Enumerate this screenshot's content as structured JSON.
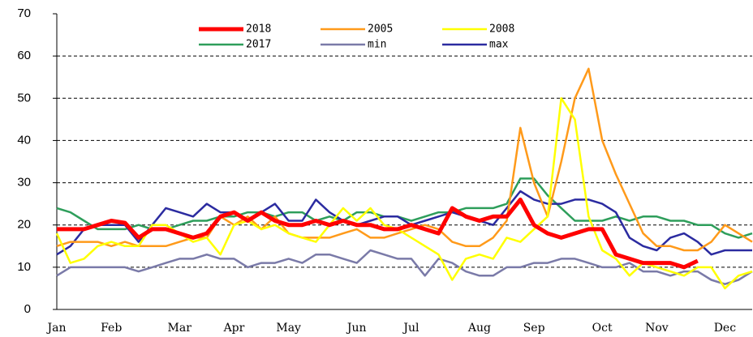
{
  "chart_data": {
    "type": "line",
    "categories": [
      "Jan",
      null,
      null,
      null,
      "Feb",
      null,
      null,
      null,
      null,
      "Mar",
      null,
      null,
      null,
      "Apr",
      null,
      null,
      null,
      "May",
      null,
      null,
      null,
      null,
      "Jun",
      null,
      null,
      null,
      "Jul",
      null,
      null,
      null,
      null,
      "Aug",
      null,
      null,
      null,
      "Sep",
      null,
      null,
      null,
      null,
      "Oct",
      null,
      null,
      null,
      "Nov",
      null,
      null,
      null,
      null,
      "Dec",
      null,
      null
    ],
    "series": [
      {
        "name": "2018",
        "color": "#ff0000",
        "values": [
          19,
          19,
          19,
          20,
          21,
          20.5,
          17,
          19,
          19,
          18,
          17,
          18,
          22,
          23,
          21,
          23,
          21,
          20,
          20,
          21,
          20,
          21,
          20,
          20,
          19,
          19,
          20,
          19,
          18,
          24,
          22,
          21,
          22,
          22,
          26,
          20,
          18,
          17,
          18,
          19,
          19,
          13,
          12,
          11,
          11,
          11,
          10,
          11.5,
          null,
          null,
          null,
          null
        ]
      },
      {
        "name": "2005",
        "color": "#ff9a1a",
        "values": [
          15,
          16,
          16,
          16,
          15,
          16,
          15,
          15,
          15,
          16,
          17,
          17,
          22,
          20,
          22,
          19,
          22,
          18,
          17,
          17,
          17,
          18,
          19,
          17,
          17,
          18,
          19,
          20,
          19,
          16,
          15,
          15,
          17,
          21,
          43,
          30,
          22,
          35,
          50,
          57,
          40,
          32,
          25,
          18,
          15,
          15,
          14,
          14,
          16,
          20,
          18,
          16
        ]
      },
      {
        "name": "2008",
        "color": "#ffff00",
        "values": [
          18,
          11,
          12,
          15,
          16,
          15,
          15,
          20,
          20,
          18,
          16,
          17,
          13,
          20,
          21,
          19,
          20,
          18,
          17,
          16,
          20,
          24,
          21,
          24,
          20,
          19,
          17,
          15,
          13,
          7,
          12,
          13,
          12,
          17,
          16,
          19,
          22,
          50,
          45,
          22,
          14,
          12,
          8,
          11,
          10,
          9,
          8,
          10,
          10,
          5,
          8,
          9
        ]
      },
      {
        "name": "2017",
        "color": "#2e9e5b",
        "values": [
          24,
          23,
          21,
          19,
          19,
          19,
          20,
          19,
          19,
          20,
          21,
          21,
          22,
          22,
          23,
          23,
          22,
          23,
          23,
          21,
          22,
          21,
          23,
          23,
          22,
          22,
          21,
          22,
          23,
          23,
          24,
          24,
          24,
          25,
          31,
          31,
          27,
          24,
          21,
          21,
          21,
          22,
          21,
          22,
          22,
          21,
          21,
          20,
          20,
          18,
          17,
          18
        ]
      },
      {
        "name": "min",
        "color": "#7a7aa8",
        "values": [
          8,
          10,
          10,
          10,
          10,
          10,
          9,
          10,
          11,
          12,
          12,
          13,
          12,
          12,
          10,
          11,
          11,
          12,
          11,
          13,
          13,
          12,
          11,
          14,
          13,
          12,
          12,
          8,
          12,
          11,
          9,
          8,
          8,
          10,
          10,
          11,
          11,
          12,
          12,
          11,
          10,
          10,
          11,
          9,
          9,
          8,
          9,
          9,
          7,
          6,
          7,
          9
        ]
      },
      {
        "name": "max",
        "color": "#2b2ba0",
        "values": [
          13,
          15,
          19,
          20,
          20,
          20,
          16,
          20,
          24,
          23,
          22,
          25,
          23,
          23,
          21,
          23,
          25,
          21,
          21,
          26,
          23,
          21,
          20,
          21,
          22,
          22,
          20,
          21,
          22,
          23,
          22,
          21,
          20,
          24,
          28,
          26,
          25,
          25,
          26,
          26,
          25,
          23,
          17,
          15,
          14,
          17,
          18,
          16,
          13,
          14,
          14,
          14
        ]
      }
    ],
    "ylim": [
      0,
      70
    ],
    "yticks": [
      0,
      10,
      20,
      30,
      40,
      50,
      60,
      70
    ],
    "grid": true
  }
}
